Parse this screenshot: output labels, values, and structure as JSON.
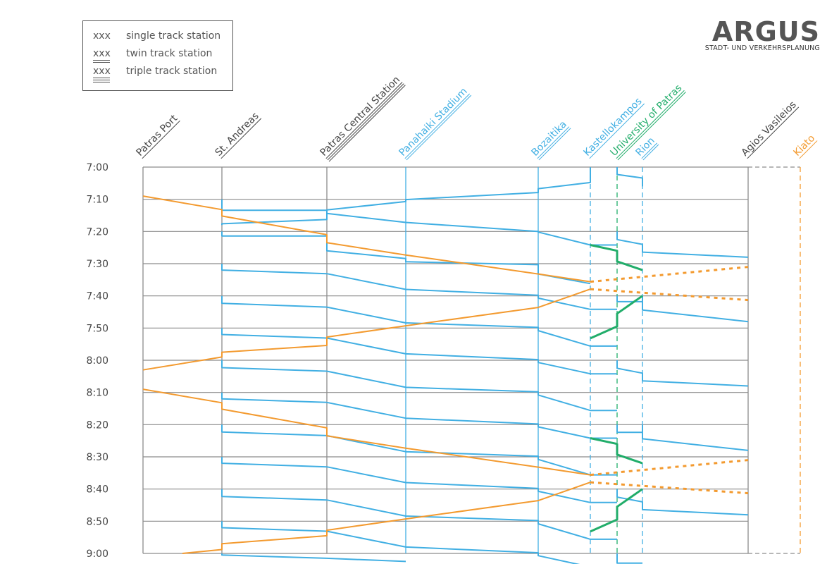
{
  "legend": {
    "items": [
      {
        "symbol": "xxx",
        "label": "single track station"
      },
      {
        "symbol": "xxx",
        "label": "twin track station"
      },
      {
        "symbol": "xxx",
        "label": "triple track station"
      }
    ]
  },
  "logo": {
    "name": "ARGUS",
    "subtitle": "STADT- UND VERKEHRSPLANUNG"
  },
  "colors": {
    "grid": "#8c8c8c",
    "blue": "#41afe3",
    "orange": "#f39a2f",
    "green": "#21ad6a",
    "text": "#555555"
  },
  "chart_data": {
    "type": "line",
    "title": "",
    "xlabel": "",
    "ylabel": "",
    "y_axis": {
      "start": "7:00",
      "end": "9:00",
      "tick_interval_min": 10,
      "inverted": true
    },
    "y_tick_labels": [
      "7:00",
      "7:10",
      "7:20",
      "7:30",
      "7:40",
      "7:50",
      "8:00",
      "8:10",
      "8:20",
      "8:30",
      "8:40",
      "8:50",
      "9:00"
    ],
    "stations": [
      {
        "name": "Patras Port",
        "tracks": 1,
        "color": "gray",
        "line": "solid"
      },
      {
        "name": "St. Andreas",
        "tracks": 1,
        "color": "gray",
        "line": "solid"
      },
      {
        "name": "Patras Central Station",
        "tracks": 3,
        "color": "gray",
        "line": "solid"
      },
      {
        "name": "Panahaiki Stadium",
        "tracks": 2,
        "color": "blue",
        "line": "solid"
      },
      {
        "name": "Bozaitika",
        "tracks": 2,
        "color": "blue",
        "line": "solid"
      },
      {
        "name": "Kastellokampos",
        "tracks": 1,
        "color": "blue",
        "line": "dashed"
      },
      {
        "name": "University of Patras",
        "tracks": 2,
        "color": "green",
        "line": "dashed"
      },
      {
        "name": "Rion",
        "tracks": 2,
        "color": "blue",
        "line": "dashed"
      },
      {
        "name": "Agios Vasileios",
        "tracks": 1,
        "color": "gray",
        "line": "solid"
      },
      {
        "name": "Kiato",
        "tracks": 1,
        "color": "orange",
        "line": "dashed"
      }
    ],
    "series": [
      {
        "color": "blue",
        "style": "solid",
        "points": [
          [
            1,
            10
          ],
          [
            1,
            13.4
          ],
          [
            2,
            13.4
          ],
          [
            2,
            14.4
          ],
          [
            3,
            17.2
          ],
          [
            4,
            20
          ],
          [
            4,
            20.2
          ],
          [
            5,
            24.2
          ],
          [
            6,
            24.2
          ]
        ]
      },
      {
        "color": "blue",
        "style": "solid",
        "points": [
          [
            1,
            20
          ],
          [
            1,
            21.4
          ],
          [
            2,
            21.4
          ],
          [
            2,
            26
          ],
          [
            3,
            28.4
          ],
          [
            3,
            29.4
          ],
          [
            4,
            30.3
          ],
          [
            4,
            33.2
          ],
          [
            5,
            36.2
          ]
        ]
      },
      {
        "color": "blue",
        "style": "solid",
        "points": [
          [
            1,
            30
          ],
          [
            1,
            32
          ],
          [
            2,
            33.1
          ],
          [
            3,
            38
          ],
          [
            4,
            39.8
          ],
          [
            4,
            40.7
          ],
          [
            5,
            44.2
          ],
          [
            6,
            44.2
          ]
        ]
      },
      {
        "color": "blue",
        "style": "solid",
        "points": [
          [
            1,
            40
          ],
          [
            1,
            42.3
          ],
          [
            2,
            43.5
          ],
          [
            3,
            48.4
          ],
          [
            4,
            49.8
          ],
          [
            4,
            50.8
          ],
          [
            5,
            55.6
          ],
          [
            6,
            55.6
          ]
        ]
      },
      {
        "color": "blue",
        "style": "solid",
        "points": [
          [
            1,
            50
          ],
          [
            1,
            52
          ],
          [
            2,
            53.1
          ],
          [
            3,
            58
          ],
          [
            4,
            59.8
          ],
          [
            4,
            60.7
          ],
          [
            5,
            64.2
          ],
          [
            6,
            64.2
          ]
        ]
      },
      {
        "color": "blue",
        "style": "solid",
        "points": [
          [
            1,
            60
          ],
          [
            1,
            62.3
          ],
          [
            2,
            63.4
          ],
          [
            3,
            68.4
          ],
          [
            4,
            69.8
          ],
          [
            4,
            70.8
          ],
          [
            5,
            75.6
          ],
          [
            6,
            75.6
          ]
        ]
      },
      {
        "color": "blue",
        "style": "solid",
        "points": [
          [
            1,
            70
          ],
          [
            1,
            72
          ],
          [
            2,
            73.1
          ],
          [
            3,
            78
          ],
          [
            4,
            79.8
          ],
          [
            4,
            80.7
          ],
          [
            5,
            84.2
          ],
          [
            6,
            84.2
          ]
        ]
      },
      {
        "color": "blue",
        "style": "solid",
        "points": [
          [
            1,
            80
          ],
          [
            1,
            82.3
          ],
          [
            2,
            83.4
          ],
          [
            3,
            88.4
          ],
          [
            4,
            89.8
          ],
          [
            4,
            90.8
          ],
          [
            5,
            95.6
          ],
          [
            6,
            95.6
          ]
        ]
      },
      {
        "color": "blue",
        "style": "solid",
        "points": [
          [
            1,
            90
          ],
          [
            1,
            92
          ],
          [
            2,
            93.1
          ],
          [
            3,
            98
          ],
          [
            4,
            99.8
          ],
          [
            4,
            100.7
          ],
          [
            5,
            104.2
          ],
          [
            6,
            104.2
          ]
        ]
      },
      {
        "color": "blue",
        "style": "solid",
        "points": [
          [
            1,
            100
          ],
          [
            1,
            102.3
          ],
          [
            2,
            103.4
          ],
          [
            3,
            108.4
          ],
          [
            4,
            109.8
          ],
          [
            4,
            110.8
          ],
          [
            5,
            115.6
          ],
          [
            6,
            115.6
          ]
        ]
      },
      {
        "color": "blue",
        "style": "solid",
        "points": [
          [
            1,
            110
          ],
          [
            1,
            112
          ],
          [
            2,
            113.1
          ],
          [
            3,
            118
          ],
          [
            4,
            119.8
          ],
          [
            4,
            120.7
          ],
          [
            5,
            124.2
          ],
          [
            6,
            124.2
          ]
        ]
      },
      {
        "color": "blue",
        "style": "solid",
        "points": [
          [
            1,
            120
          ],
          [
            1,
            120.5
          ],
          [
            2,
            121.5
          ],
          [
            3,
            122.5
          ]
        ]
      },
      {
        "color": "blue",
        "style": "solid",
        "points": [
          [
            1,
            18
          ],
          [
            1,
            17.6
          ],
          [
            2,
            16.3
          ],
          [
            2,
            13.3
          ],
          [
            3,
            10.7
          ],
          [
            3,
            10.1
          ],
          [
            4,
            7.9
          ],
          [
            4,
            6.7
          ],
          [
            5,
            4.8
          ],
          [
            5,
            0.1
          ]
        ]
      },
      {
        "color": "blue",
        "style": "solid",
        "points": [
          [
            6,
            20
          ],
          [
            6,
            22.5
          ],
          [
            7,
            24
          ],
          [
            7,
            26.4
          ],
          [
            8,
            28
          ]
        ]
      },
      {
        "color": "blue",
        "style": "solid",
        "points": [
          [
            7,
            40
          ],
          [
            7,
            44.4
          ],
          [
            8,
            48
          ]
        ]
      },
      {
        "color": "blue",
        "style": "solid",
        "points": [
          [
            6,
            60
          ],
          [
            6,
            62.5
          ],
          [
            7,
            64
          ],
          [
            7,
            66.4
          ],
          [
            8,
            68
          ]
        ]
      },
      {
        "color": "blue",
        "style": "solid",
        "points": [
          [
            7,
            80
          ],
          [
            7,
            84.4
          ],
          [
            8,
            88
          ]
        ]
      },
      {
        "color": "blue",
        "style": "solid",
        "points": [
          [
            6,
            100
          ],
          [
            6,
            102.5
          ],
          [
            7,
            104
          ],
          [
            7,
            106.4
          ],
          [
            8,
            108
          ]
        ]
      },
      {
        "color": "blue",
        "style": "solid",
        "points": [
          [
            6,
            0
          ],
          [
            6,
            2.3
          ],
          [
            7,
            3.4
          ],
          [
            7,
            6
          ]
        ]
      },
      {
        "color": "blue",
        "style": "solid",
        "points": [
          [
            6,
            40
          ],
          [
            6,
            41.8
          ],
          [
            7,
            41.8
          ]
        ]
      },
      {
        "color": "blue",
        "style": "solid",
        "points": [
          [
            6,
            80
          ],
          [
            6,
            82.4
          ],
          [
            7,
            82.4
          ]
        ]
      },
      {
        "color": "blue",
        "style": "solid",
        "points": [
          [
            6,
            120
          ],
          [
            6,
            123
          ],
          [
            7,
            123
          ]
        ]
      },
      {
        "color": "orange",
        "style": "solid",
        "points": [
          [
            0,
            9
          ],
          [
            1,
            13.2
          ],
          [
            1,
            15.2
          ],
          [
            2,
            21
          ],
          [
            2,
            23.5
          ],
          [
            3,
            27.3
          ],
          [
            4,
            33.2
          ],
          [
            5,
            35.6
          ]
        ]
      },
      {
        "color": "orange",
        "style": "solid",
        "points": [
          [
            0,
            69
          ],
          [
            1,
            73.2
          ],
          [
            1,
            75.2
          ],
          [
            2,
            81
          ],
          [
            2,
            83.5
          ],
          [
            3,
            87.3
          ],
          [
            4,
            93.2
          ],
          [
            5,
            95.6
          ]
        ]
      },
      {
        "color": "orange",
        "style": "solid",
        "points": [
          [
            0,
            63
          ],
          [
            1,
            59
          ],
          [
            1,
            57.5
          ],
          [
            2,
            55.4
          ],
          [
            2,
            52.8
          ],
          [
            3,
            49.3
          ],
          [
            4,
            43.6
          ],
          [
            5,
            37.9
          ]
        ]
      },
      {
        "color": "orange",
        "style": "solid",
        "points": [
          [
            0.5,
            120
          ],
          [
            1,
            118.8
          ],
          [
            1,
            117
          ],
          [
            2,
            114.5
          ],
          [
            2,
            112.8
          ],
          [
            3,
            109.3
          ],
          [
            4,
            103.6
          ],
          [
            5,
            97.9
          ]
        ]
      },
      {
        "color": "orange",
        "style": "dashed",
        "points": [
          [
            5,
            35.6
          ],
          [
            8,
            31
          ]
        ]
      },
      {
        "color": "orange",
        "style": "dashed",
        "points": [
          [
            5,
            37.9
          ],
          [
            8,
            41.3
          ]
        ]
      },
      {
        "color": "orange",
        "style": "dashed",
        "points": [
          [
            5,
            95.6
          ],
          [
            8,
            91
          ]
        ]
      },
      {
        "color": "orange",
        "style": "dashed",
        "points": [
          [
            5,
            97.9
          ],
          [
            8,
            101.3
          ]
        ]
      },
      {
        "color": "green",
        "style": "solid",
        "points": [
          [
            5,
            24.2
          ],
          [
            6,
            26
          ],
          [
            6,
            29.3
          ],
          [
            7,
            32
          ]
        ]
      },
      {
        "color": "green",
        "style": "solid",
        "points": [
          [
            5,
            53.2
          ],
          [
            6,
            49.5
          ],
          [
            6,
            45.5
          ],
          [
            7,
            40
          ]
        ]
      },
      {
        "color": "green",
        "style": "solid",
        "points": [
          [
            5,
            84.2
          ],
          [
            6,
            86
          ],
          [
            6,
            89.3
          ],
          [
            7,
            92
          ]
        ]
      },
      {
        "color": "green",
        "style": "solid",
        "points": [
          [
            5,
            113.2
          ],
          [
            6,
            109.5
          ],
          [
            6,
            105.5
          ],
          [
            7,
            100
          ]
        ]
      }
    ]
  }
}
